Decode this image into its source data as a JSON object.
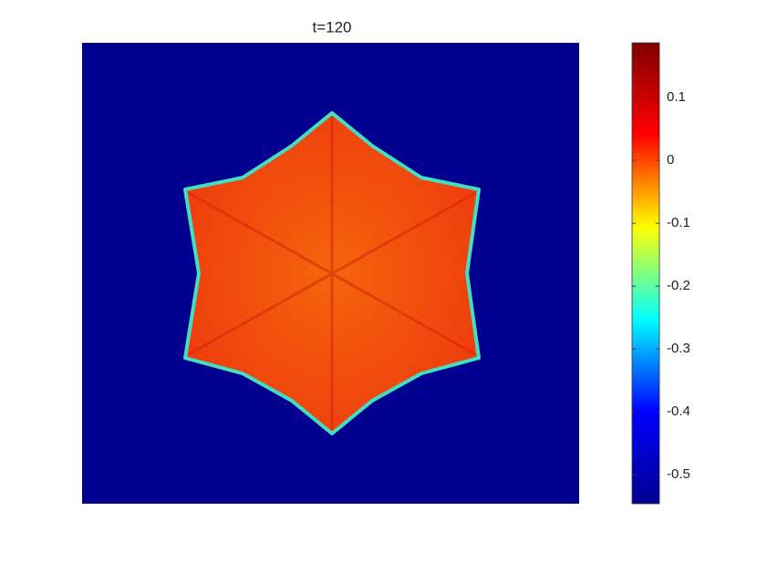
{
  "chart_data": {
    "type": "image",
    "title": "t=120",
    "colormap": "jet",
    "clim": [
      -0.546,
      0.187
    ],
    "cticks": [
      0.1,
      0,
      -0.1,
      -0.2,
      -0.3,
      -0.4,
      -0.5
    ]
  }
}
